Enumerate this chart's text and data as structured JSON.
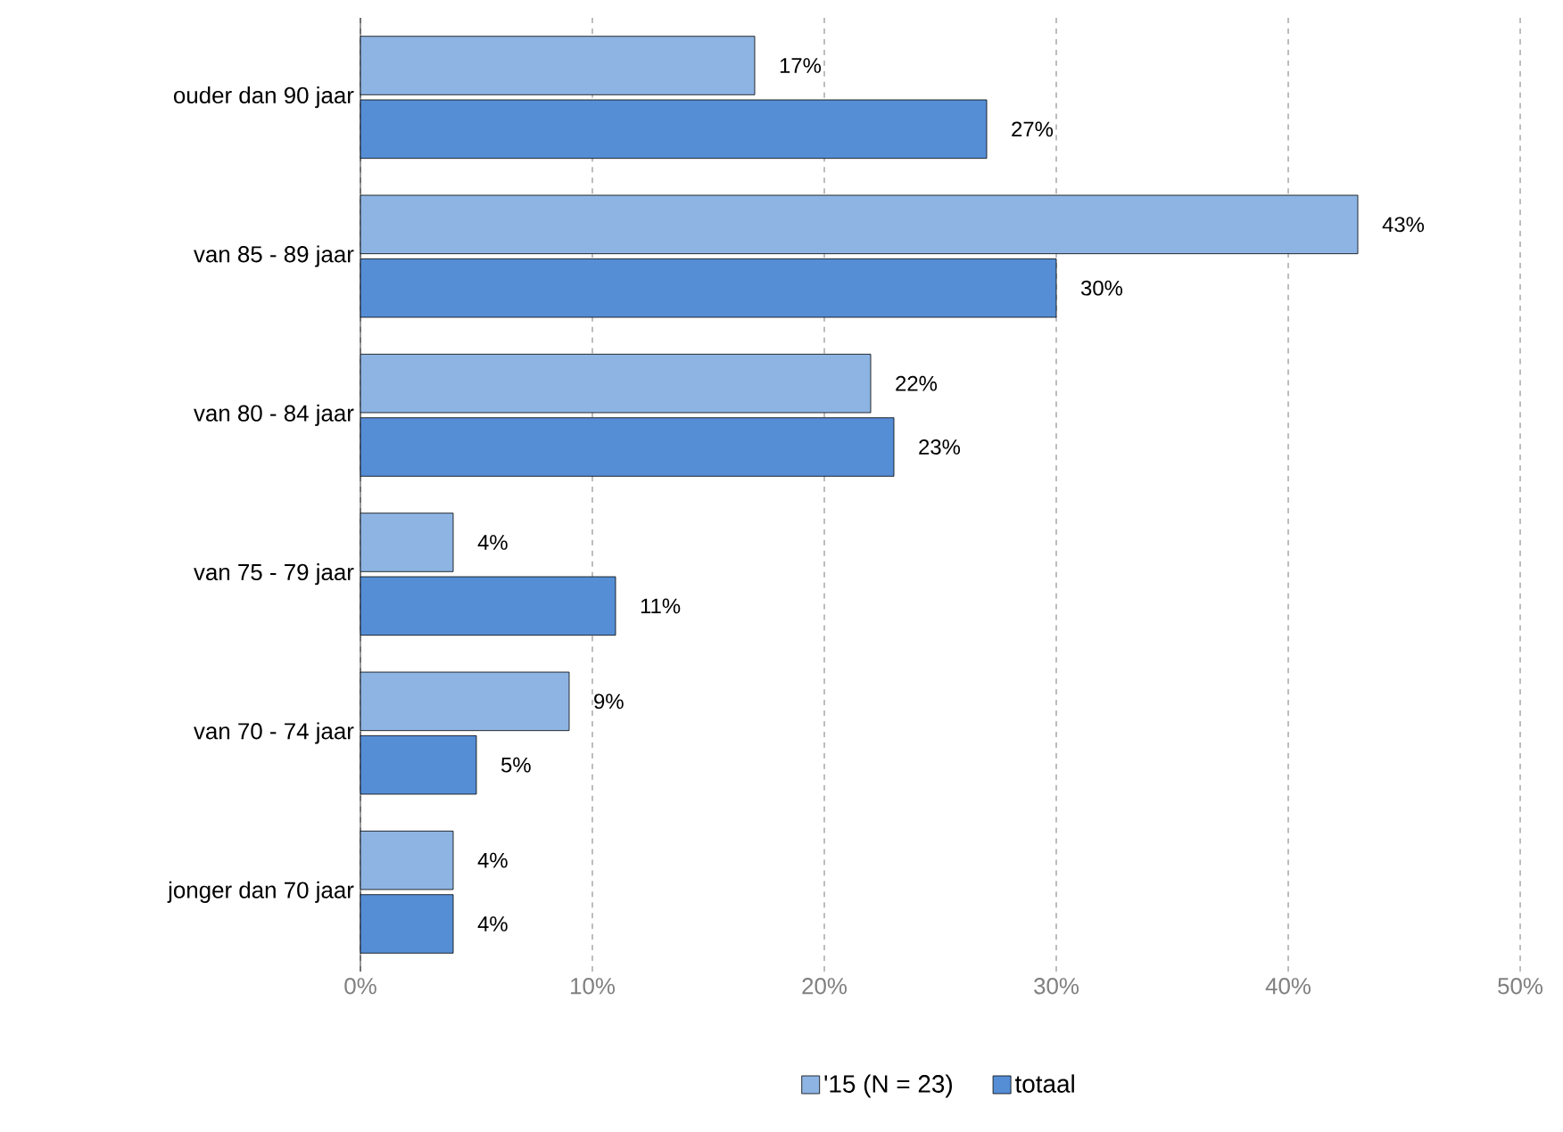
{
  "chart_data": {
    "type": "bar",
    "orientation": "horizontal",
    "categories": [
      "ouder dan 90 jaar",
      "van 85 - 89 jaar",
      "van 80 - 84 jaar",
      "van 75 - 79 jaar",
      "van 70 - 74 jaar",
      "jonger dan 70 jaar"
    ],
    "series": [
      {
        "name": "'15 (N = 23)",
        "color": "#8db4e3",
        "values": [
          17,
          43,
          22,
          4,
          9,
          4
        ],
        "value_labels": [
          "17%",
          "43%",
          "22%",
          "4%",
          "9%",
          "4%"
        ]
      },
      {
        "name": "totaal",
        "color": "#558ed5",
        "values": [
          27,
          30,
          23,
          11,
          5,
          4
        ],
        "value_labels": [
          "27%",
          "30%",
          "23%",
          "11%",
          "5%",
          "4%"
        ]
      }
    ],
    "xlim": [
      0,
      50
    ],
    "xticks": [
      {
        "value": 0,
        "label": "0%"
      },
      {
        "value": 10,
        "label": "10%"
      },
      {
        "value": 20,
        "label": "20%"
      },
      {
        "value": 30,
        "label": "30%"
      },
      {
        "value": 40,
        "label": "40%"
      },
      {
        "value": 50,
        "label": "50%"
      }
    ],
    "grid": "x",
    "legend": "bottom"
  }
}
